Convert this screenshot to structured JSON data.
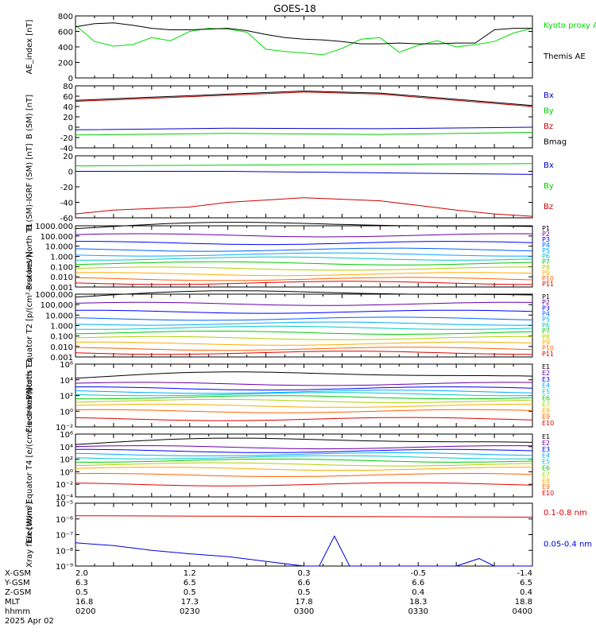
{
  "title": "GOES-18",
  "chart_data": [
    {
      "type": "line",
      "ylabel": "AE_index [nT]",
      "ylim": [
        0,
        800
      ],
      "yticks": [
        "0",
        "200",
        "400",
        "600",
        "800"
      ],
      "series": [
        {
          "name": "Kyoto proxy AE",
          "color": "#00dd00",
          "x": [
            2.0,
            2.25,
            2.5,
            2.75,
            3.0,
            3.25,
            3.5,
            3.75,
            4.0,
            4.25,
            4.5,
            4.75,
            5.0,
            5.25,
            5.5,
            5.75,
            6.0,
            6.25,
            6.5,
            6.75,
            7.0,
            7.25,
            7.5,
            7.75,
            8.0
          ],
          "values": [
            680,
            470,
            410,
            430,
            520,
            480,
            600,
            640,
            630,
            590,
            370,
            340,
            320,
            300,
            380,
            500,
            520,
            330,
            420,
            480,
            400,
            430,
            470,
            580,
            640
          ]
        },
        {
          "name": "Themis AE",
          "color": "#000000",
          "x": [
            2.0,
            2.25,
            2.5,
            2.75,
            3.0,
            3.25,
            3.5,
            3.75,
            4.0,
            4.25,
            4.5,
            4.75,
            5.0,
            5.25,
            5.5,
            5.75,
            6.0,
            6.25,
            6.5,
            6.75,
            7.0,
            7.25,
            7.5,
            7.75,
            8.0
          ],
          "values": [
            660,
            700,
            710,
            680,
            640,
            620,
            620,
            630,
            640,
            610,
            560,
            520,
            500,
            490,
            470,
            440,
            440,
            450,
            440,
            440,
            450,
            450,
            620,
            640,
            640
          ]
        }
      ]
    },
    {
      "type": "line",
      "ylabel": "B (SM) [nT]",
      "ylim": [
        -40,
        80
      ],
      "yticks": [
        "-40",
        "-20",
        "0",
        "20",
        "40",
        "60",
        "80"
      ],
      "series": [
        {
          "name": "Bx",
          "color": "#0000cc",
          "x": [
            2,
            4,
            6,
            8
          ],
          "values": [
            -5,
            -2,
            -3,
            0
          ]
        },
        {
          "name": "By",
          "color": "#00cc00",
          "x": [
            2,
            4,
            6,
            8
          ],
          "values": [
            -15,
            -12,
            -14,
            -10
          ]
        },
        {
          "name": "Bz",
          "color": "#cc0000",
          "x": [
            2,
            3,
            4,
            5,
            6,
            7,
            8
          ],
          "values": [
            50,
            56,
            62,
            68,
            64,
            52,
            40
          ]
        },
        {
          "name": "Bmag",
          "color": "#000000",
          "x": [
            2,
            3,
            4,
            5,
            6,
            7,
            8
          ],
          "values": [
            52,
            58,
            64,
            70,
            66,
            54,
            42
          ]
        }
      ]
    },
    {
      "type": "line",
      "ylabel": "B (SM)-IGRF (SM) [nT]",
      "ylim": [
        -60,
        20
      ],
      "yticks": [
        "-60",
        "-40",
        "-20",
        "0",
        "20"
      ],
      "series": [
        {
          "name": "Bx",
          "color": "#0000cc",
          "x": [
            2,
            4,
            6,
            8
          ],
          "values": [
            0,
            0,
            -2,
            -4
          ]
        },
        {
          "name": "By",
          "color": "#00cc00",
          "x": [
            2,
            4,
            6,
            8
          ],
          "values": [
            7,
            8,
            9,
            10
          ]
        },
        {
          "name": "Bz",
          "color": "#cc0000",
          "x": [
            2,
            2.5,
            3,
            3.5,
            4,
            4.5,
            5,
            5.5,
            6,
            6.5,
            7,
            7.5,
            8
          ],
          "values": [
            -55,
            -50,
            -48,
            -46,
            -40,
            -37,
            -34,
            -36,
            -38,
            -44,
            -50,
            -55,
            -58
          ]
        }
      ]
    },
    {
      "type": "line",
      "ylabel": "Protons North T1",
      "scale": "log",
      "ylim": [
        0.001,
        1000000
      ],
      "yticks": [
        "0.001",
        "0.010",
        "0.100",
        "1.000",
        "10.000",
        "100.000",
        "1000.000"
      ],
      "legend": [
        "P1",
        "P2",
        "P3",
        "P4",
        "P5",
        "P6",
        "P7",
        "P8",
        "P9",
        "P10",
        "P11"
      ],
      "legend_colors": [
        "#000000",
        "#6a00a8",
        "#0000ff",
        "#0060ff",
        "#00aaff",
        "#00c8c8",
        "#00cc00",
        "#b0d000",
        "#ffaa00",
        "#ff6000",
        "#e00000"
      ],
      "levels": [
        500000,
        40000,
        3000,
        300,
        60,
        15,
        3,
        0.5,
        0.08,
        0.015,
        0.004
      ]
    },
    {
      "type": "line",
      "ylabel": "Protons Equator T2 [p/(cm²-s-sr-keV)]",
      "scale": "log",
      "ylim": [
        0.001,
        1000000
      ],
      "yticks": [
        "0.001",
        "0.010",
        "0.100",
        "1.000",
        "10.000",
        "100.000",
        "1000.000"
      ],
      "legend": [
        "P1",
        "P2",
        "P3",
        "P4",
        "P5",
        "P6",
        "P7",
        "P8",
        "P9",
        "P10",
        "P11"
      ],
      "legend_colors": [
        "#000000",
        "#6a00a8",
        "#0000ff",
        "#0060ff",
        "#00aaff",
        "#00c8c8",
        "#00cc00",
        "#b0d000",
        "#ffaa00",
        "#ff6000",
        "#e00000"
      ],
      "levels": [
        500000,
        40000,
        3000,
        300,
        60,
        15,
        3,
        0.5,
        0.08,
        0.015,
        0.004
      ]
    },
    {
      "type": "line",
      "ylabel": "Electrons North T3",
      "scale": "log",
      "ylim": [
        0.01,
        1000000
      ],
      "yticks": [
        "10⁻²",
        "10⁰",
        "10²",
        "10⁴",
        "10⁶"
      ],
      "legend": [
        "E1",
        "E2",
        "E3",
        "E4",
        "E5",
        "E6",
        "E7",
        "E8",
        "E9",
        "E10"
      ],
      "legend_colors": [
        "#000000",
        "#6a00a8",
        "#0000ff",
        "#00aaff",
        "#00c8c8",
        "#00cc00",
        "#b0d000",
        "#ffaa00",
        "#ff6000",
        "#e00000"
      ],
      "levels": [
        20000,
        3000,
        800,
        300,
        150,
        60,
        20,
        5,
        1,
        0.1
      ]
    },
    {
      "type": "line",
      "ylabel": "Electrons Equator T4 [e/(cm²-s-sr-keV)]",
      "scale": "log",
      "ylim": [
        0.0001,
        1000000
      ],
      "yticks": [
        "10⁻⁴",
        "10⁻²",
        "10⁰",
        "10²",
        "10⁴",
        "10⁶"
      ],
      "legend": [
        "E1",
        "E2",
        "E3",
        "E4",
        "E5",
        "E6",
        "E7",
        "E8",
        "E9",
        "E10"
      ],
      "legend_colors": [
        "#000000",
        "#6a00a8",
        "#0000ff",
        "#00aaff",
        "#00c8c8",
        "#00cc00",
        "#b0d000",
        "#ffaa00",
        "#ff6000",
        "#e00000"
      ],
      "levels": [
        30000,
        8000,
        2000,
        600,
        200,
        60,
        15,
        3,
        0.3,
        0.01
      ]
    },
    {
      "type": "line",
      "ylabel": "Xray flux [W/m²]",
      "scale": "log",
      "ylim": [
        1e-09,
        1e-05
      ],
      "yticks": [
        "10⁻⁹",
        "10⁻⁸",
        "10⁻⁷",
        "10⁻⁶",
        "10⁻⁵"
      ],
      "series": [
        {
          "name": "0.1-0.8 nm",
          "color": "#dd0000",
          "x": [
            2,
            4,
            6,
            8
          ],
          "values": [
            1.6e-06,
            1.5e-06,
            1.4e-06,
            1.3e-06
          ]
        },
        {
          "name": "0.05-0.4 nm",
          "color": "#0000dd",
          "x": [
            2,
            2.5,
            3,
            3.5,
            4,
            4.5,
            5,
            5.2,
            5.4,
            5.6,
            6,
            6.5,
            7,
            7.3,
            7.5,
            8
          ],
          "values": [
            3e-08,
            2e-08,
            1e-08,
            6e-09,
            4e-09,
            2e-09,
            1e-09,
            1e-09,
            8e-08,
            1e-09,
            1e-09,
            1e-09,
            1e-09,
            3e-09,
            1e-09,
            1e-09
          ]
        }
      ]
    }
  ],
  "ephemeris": {
    "labels": [
      "X-GSM",
      "Y-GSM",
      "Z-GSM",
      "MLT",
      "hhmm"
    ],
    "date": "2025 Apr 02",
    "columns": [
      [
        "2.0",
        "6.3",
        "0.5",
        "16.8",
        "0200"
      ],
      [
        "1.2",
        "6.5",
        "0.5",
        "17.3",
        "0230"
      ],
      [
        "0.3",
        "6.6",
        "0.5",
        "17.8",
        "0300"
      ],
      [
        "-0.5",
        "6.6",
        "0.4",
        "18.3",
        "0330"
      ],
      [
        "-1.4",
        "6.5",
        "0.4",
        "18.8",
        "0400"
      ]
    ]
  }
}
